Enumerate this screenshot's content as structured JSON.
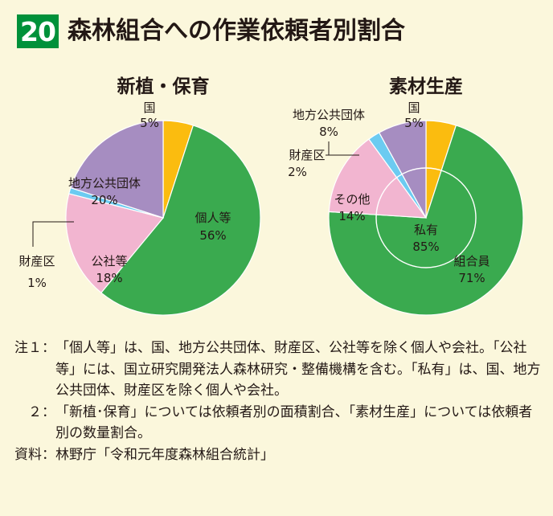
{
  "header": {
    "number": "20",
    "title": "森林組合への作業依頼者別割合"
  },
  "colors": {
    "green": "#3aaa4f",
    "purple": "#a68dc1",
    "yellow": "#fbbc0f",
    "pink": "#f2b5d0",
    "lightblue": "#6ccbf1",
    "title_badge": "#00913a"
  },
  "chart_data": [
    {
      "type": "pie",
      "title": "新植・保育",
      "slices": [
        {
          "label": "国",
          "value": 5,
          "value_text": "5%",
          "color": "#fbbc0f"
        },
        {
          "label": "個人等",
          "value": 56,
          "value_text": "56%",
          "color": "#3aaa4f"
        },
        {
          "label": "公社等",
          "value": 18,
          "value_text": "18%",
          "color": "#f2b5d0"
        },
        {
          "label": "財産区",
          "value": 1,
          "value_text": "1%",
          "color": "#6ccbf1"
        },
        {
          "label": "地方公共団体",
          "value": 20,
          "value_text": "20%",
          "color": "#a68dc1"
        }
      ]
    },
    {
      "type": "pie",
      "title": "素材生産",
      "slices": [
        {
          "label": "国",
          "value": 5,
          "value_text": "5%",
          "color": "#fbbc0f"
        },
        {
          "label": "組合員",
          "value": 71,
          "value_text": "71%",
          "color": "#3aaa4f"
        },
        {
          "label": "その他",
          "value": 14,
          "value_text": "14%",
          "color": "#f2b5d0"
        },
        {
          "label": "財産区",
          "value": 2,
          "value_text": "2%",
          "color": "#6ccbf1"
        },
        {
          "label": "地方公共団体",
          "value": 8,
          "value_text": "8%",
          "color": "#a68dc1"
        }
      ],
      "inner_group": {
        "label": "私有",
        "value": 85,
        "value_text": "85%"
      }
    }
  ],
  "notes": [
    {
      "head": "注１：",
      "text": "「個人等」は、国、地方公共団体、財産区、公社等を除く個人や会社。「公社等」には、国立研究開発法人森林研究・整備機構を含む。「私有」は、国、地方公共団体、財産区を除く個人や会社。"
    },
    {
      "head": "　２：",
      "text": "「新植･保育」については依頼者別の面積割合、「素材生産」については依頼者別の数量割合。"
    },
    {
      "head": "資料：",
      "text": "林野庁「令和元年度森林組合統計」"
    }
  ]
}
